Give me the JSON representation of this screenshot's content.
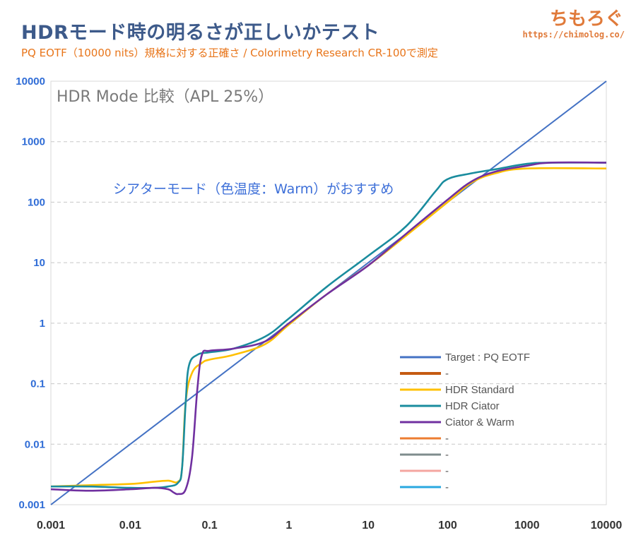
{
  "header": {
    "title": "HDRモード時の明るさが正しいかテスト",
    "subtitle": "PQ EOTF（10000 nits）規格に対する正確さ / Colorimetry Research CR-100で測定",
    "brand": "ちもろぐ",
    "brand_url": "https://chimolog.co/"
  },
  "chart_data": {
    "type": "line",
    "title": "HDR Mode 比較（APL 25%）",
    "annotation": "シアターモード（色温度：Warm）がおすすめ",
    "x_scale": "log",
    "y_scale": "log",
    "xlim": [
      0.001,
      10000
    ],
    "ylim": [
      0.001,
      10000
    ],
    "x_ticks": [
      "0.001",
      "0.01",
      "0.1",
      "1",
      "10",
      "100",
      "1000",
      "10000"
    ],
    "y_ticks": [
      "0.001",
      "0.01",
      "0.1",
      "1",
      "10",
      "100",
      "1000",
      "10000"
    ],
    "grid": "horizontal dashed",
    "legend_position": "bottom-right inside plot",
    "legend": [
      {
        "name": "Target : PQ EOTF",
        "color": "#4472c4"
      },
      {
        "name": "-",
        "color": "#c55a11"
      },
      {
        "name": "HDR Standard",
        "color": "#ffc000"
      },
      {
        "name": "HDR Ciator",
        "color": "#1a8c9e"
      },
      {
        "name": "Ciator & Warm",
        "color": "#7030a0"
      },
      {
        "name": "-",
        "color": "#ed7d31"
      },
      {
        "name": "-",
        "color": "#7f8c8d"
      },
      {
        "name": "-",
        "color": "#f4a6a0"
      },
      {
        "name": "-",
        "color": "#29a8e0"
      }
    ],
    "series": [
      {
        "name": "Target : PQ EOTF",
        "color": "#4472c4",
        "x": [
          0.001,
          10000
        ],
        "y": [
          0.001,
          10000
        ]
      },
      {
        "name": "HDR Standard",
        "color": "#ffc000",
        "x": [
          0.001,
          0.003,
          0.01,
          0.02,
          0.03,
          0.04,
          0.045,
          0.05,
          0.06,
          0.08,
          0.1,
          0.2,
          0.5,
          1,
          3,
          10,
          30,
          100,
          200,
          400,
          1000,
          10000
        ],
        "y": [
          0.002,
          0.0021,
          0.0022,
          0.0024,
          0.0025,
          0.0024,
          0.004,
          0.05,
          0.15,
          0.22,
          0.25,
          0.3,
          0.45,
          0.95,
          3,
          9,
          28,
          100,
          210,
          300,
          360,
          360
        ]
      },
      {
        "name": "HDR Ciator",
        "color": "#1a8c9e",
        "x": [
          0.001,
          0.003,
          0.01,
          0.02,
          0.03,
          0.04,
          0.045,
          0.05,
          0.055,
          0.07,
          0.1,
          0.2,
          0.5,
          1,
          3,
          10,
          30,
          70,
          100,
          200,
          400,
          1000,
          2000,
          10000
        ],
        "y": [
          0.002,
          0.002,
          0.0019,
          0.0019,
          0.002,
          0.0023,
          0.004,
          0.05,
          0.2,
          0.3,
          0.33,
          0.38,
          0.6,
          1.2,
          4,
          13,
          40,
          150,
          240,
          300,
          350,
          430,
          450,
          450
        ]
      },
      {
        "name": "Ciator & Warm",
        "color": "#7030a0",
        "x": [
          0.001,
          0.003,
          0.01,
          0.02,
          0.03,
          0.035,
          0.04,
          0.05,
          0.06,
          0.07,
          0.08,
          0.1,
          0.2,
          0.5,
          1,
          3,
          10,
          30,
          100,
          200,
          400,
          1000,
          2000,
          10000
        ],
        "y": [
          0.0018,
          0.0017,
          0.0018,
          0.0019,
          0.0018,
          0.0016,
          0.0015,
          0.0018,
          0.006,
          0.08,
          0.3,
          0.35,
          0.38,
          0.5,
          1.0,
          3,
          9,
          30,
          110,
          220,
          320,
          400,
          450,
          450
        ]
      }
    ]
  }
}
